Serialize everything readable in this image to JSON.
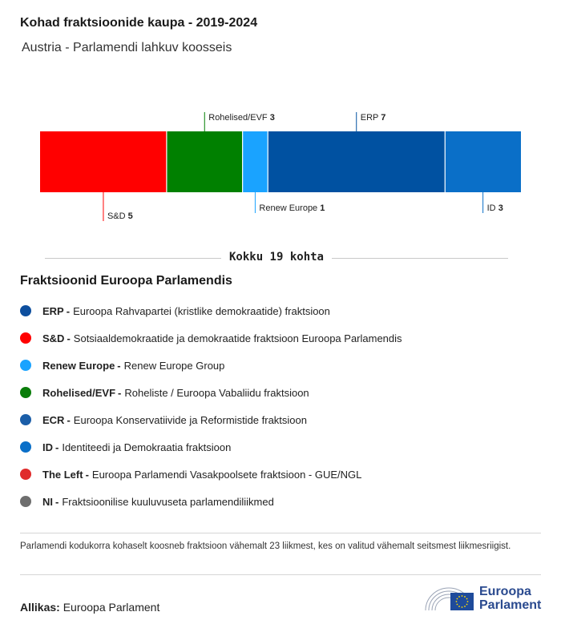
{
  "title": "Kohad fraktsioonide kaupa - 2019-2024",
  "subtitle": "Austria - Parlamendi lahkuv koosseis",
  "chart_data": {
    "type": "bar",
    "orientation": "stacked-horizontal",
    "categories": [
      "S&D",
      "Rohelised/EVF",
      "Renew Europe",
      "ERP",
      "ID"
    ],
    "values": [
      5,
      3,
      1,
      7,
      3
    ],
    "colors": [
      "#ff0000",
      "#008000",
      "#1aa3ff",
      "#0051a1",
      "#0a6fc8"
    ],
    "label_side": [
      "bottom",
      "top",
      "bottom",
      "top",
      "bottom"
    ],
    "total": 19
  },
  "total_label": "Kokku 19 kohta",
  "legend_title": "Fraktsioonid Euroopa Parlamendis",
  "legend": [
    {
      "abbr": "ERP",
      "desc": "Euroopa Rahvapartei (kristlike demokraatide) fraktsioon",
      "color": "#0d4f9e"
    },
    {
      "abbr": "S&D",
      "desc": "Sotsiaaldemokraatide ja demokraatide fraktsioon Euroopa Parlamendis",
      "color": "#ff0000"
    },
    {
      "abbr": "Renew Europe",
      "desc": "Renew Europe Group",
      "color": "#1aa3ff"
    },
    {
      "abbr": "Rohelised/EVF",
      "desc": "Roheliste / Euroopa Vabaliidu fraktsioon",
      "color": "#0a7d0a"
    },
    {
      "abbr": "ECR",
      "desc": "Euroopa Konservatiivide ja Reformistide fraktsioon",
      "color": "#1b5ea8"
    },
    {
      "abbr": "ID",
      "desc": "Identiteedi ja Demokraatia fraktsioon",
      "color": "#0a6fc8"
    },
    {
      "abbr": "The Left",
      "desc": "Euroopa Parlamendi Vasakpoolsete fraktsioon - GUE/NGL",
      "color": "#e02b2b"
    },
    {
      "abbr": "NI",
      "desc": "Fraktsioonilise kuuluvuseta parlamendiliikmed",
      "color": "#6e6e6e"
    }
  ],
  "legend_sep": "-",
  "note": "Parlamendi kodukorra kohaselt koosneb fraktsioon vähemalt 23 liikmest, kes on valitud vähemalt seitsmest liikmesriigist.",
  "source_label": "Allikas:",
  "source_value": "Euroopa Parlament",
  "logo_line1": "Euroopa",
  "logo_line2": "Parlament",
  "logo_star_color": "#ffdd00",
  "logo_flag_color": "#1f4b9b"
}
